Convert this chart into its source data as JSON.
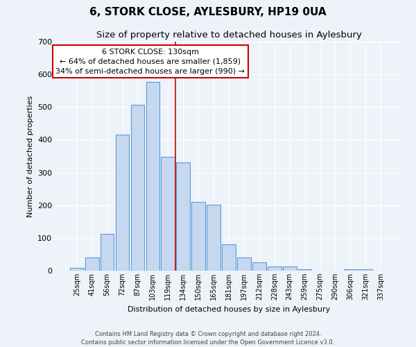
{
  "title": "6, STORK CLOSE, AYLESBURY, HP19 0UA",
  "subtitle": "Size of property relative to detached houses in Aylesbury",
  "xlabel": "Distribution of detached houses by size in Aylesbury",
  "ylabel": "Number of detached properties",
  "bar_labels": [
    "25sqm",
    "41sqm",
    "56sqm",
    "72sqm",
    "87sqm",
    "103sqm",
    "119sqm",
    "134sqm",
    "150sqm",
    "165sqm",
    "181sqm",
    "197sqm",
    "212sqm",
    "228sqm",
    "243sqm",
    "259sqm",
    "275sqm",
    "290sqm",
    "306sqm",
    "321sqm",
    "337sqm"
  ],
  "bar_values": [
    8,
    40,
    112,
    415,
    507,
    577,
    347,
    330,
    211,
    201,
    80,
    40,
    25,
    12,
    13,
    4,
    0,
    0,
    5,
    4,
    0
  ],
  "bar_color": "#c5d8f0",
  "bar_edge_color": "#5b9bd5",
  "ylim": [
    0,
    700
  ],
  "yticks": [
    0,
    100,
    200,
    300,
    400,
    500,
    600,
    700
  ],
  "vline_color": "#cc0000",
  "vline_x_index": 7,
  "annotation_title": "6 STORK CLOSE: 130sqm",
  "annotation_line1": "← 64% of detached houses are smaller (1,859)",
  "annotation_line2": "34% of semi-detached houses are larger (990) →",
  "annotation_box_color": "#ffffff",
  "annotation_box_edge_color": "#cc0000",
  "footer_line1": "Contains HM Land Registry data © Crown copyright and database right 2024.",
  "footer_line2": "Contains public sector information licensed under the Open Government Licence v3.0.",
  "background_color": "#eef2f9",
  "plot_background_color": "#eef2f9",
  "grid_color": "#ffffff",
  "title_fontsize": 11,
  "subtitle_fontsize": 9.5,
  "ylabel_fontsize": 8,
  "xlabel_fontsize": 8
}
